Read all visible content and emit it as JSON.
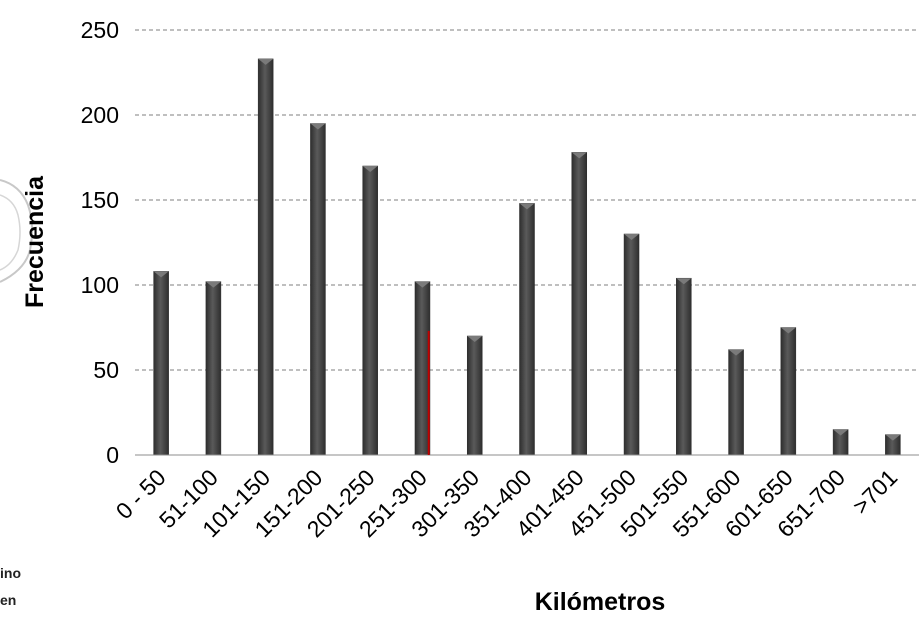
{
  "colors": {
    "bar_fill": "#4a4a4a",
    "bar_edge": "#2b2b2b",
    "bar_highlight": "#7a7a7a",
    "grid": "#7f7f7f",
    "marker": "#c00000",
    "watermark": "#bdbdbd"
  },
  "left_fragment": {
    "line1": "ino",
    "line2": "en",
    "icon": "seal-watermark-icon"
  },
  "chart_data": {
    "type": "bar",
    "title": "",
    "xlabel": "Kilómetros",
    "ylabel": "Frecuencia",
    "ylim": [
      0,
      250
    ],
    "yticks": [
      0,
      50,
      100,
      150,
      200,
      250
    ],
    "grid": true,
    "legend": "none",
    "categories": [
      "0 - 50",
      "51-100",
      "101-150",
      "151-200",
      "201-250",
      "251-300",
      "301-350",
      "351-400",
      "401-450",
      "451-500",
      "501-550",
      "551-600",
      "601-650",
      "651-700",
      ">701"
    ],
    "values": [
      108,
      102,
      233,
      195,
      170,
      102,
      70,
      148,
      178,
      130,
      104,
      62,
      75,
      15,
      12
    ],
    "marker_line": {
      "between_categories": [
        "251-300",
        "301-350"
      ],
      "value": 73
    }
  }
}
